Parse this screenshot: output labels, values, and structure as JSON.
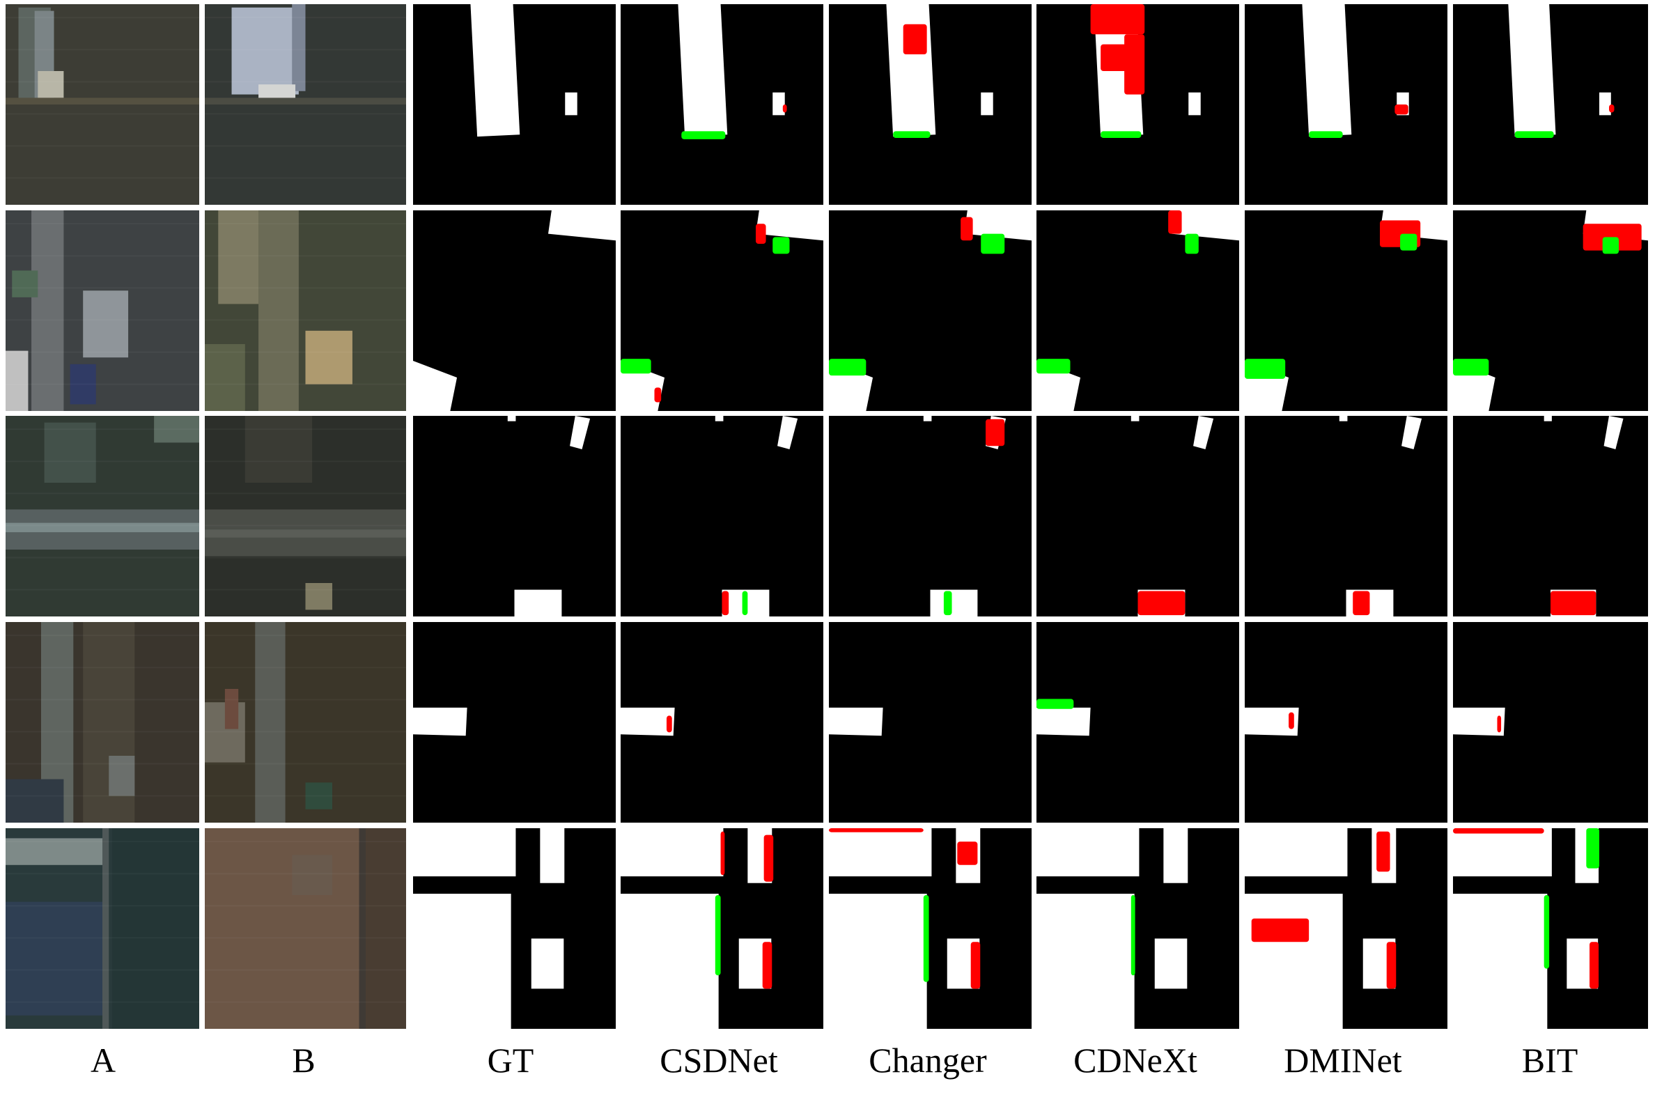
{
  "columns": [
    {
      "key": "a",
      "label": "A",
      "kind": "image"
    },
    {
      "key": "b",
      "label": "B",
      "kind": "image"
    },
    {
      "key": "gt",
      "label": "GT",
      "kind": "mask"
    },
    {
      "key": "csdnet",
      "label": "CSDNet",
      "kind": "mask"
    },
    {
      "key": "changer",
      "label": "Changer",
      "kind": "mask"
    },
    {
      "key": "cdnext",
      "label": "CDNeXt",
      "kind": "mask"
    },
    {
      "key": "dminet",
      "label": "DMINet",
      "kind": "mask"
    },
    {
      "key": "bit",
      "label": "BIT",
      "kind": "mask"
    }
  ],
  "rows": 5,
  "colors": {
    "true_positive": "#ffffff",
    "true_negative": "#000000",
    "false_positive": "#ff0000",
    "false_negative": "#00ff00",
    "separator": "#ffffff"
  }
}
